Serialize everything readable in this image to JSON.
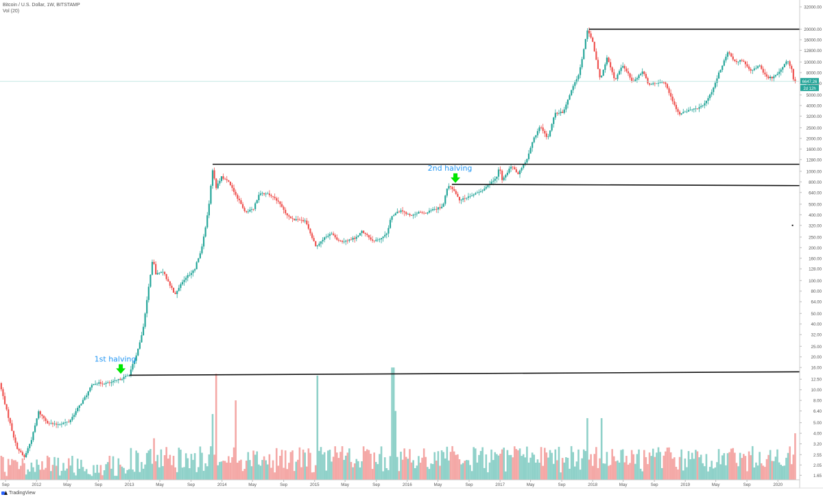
{
  "header": {
    "title": "Bitcoin / U.S. Dollar, 1W, BITSTAMP",
    "volume_label": "Vol (20)"
  },
  "footer": {
    "brand": "TradingView"
  },
  "price_badges": {
    "last_price": "6647.26",
    "countdown": "2d 12h"
  },
  "colors": {
    "up": "#26a69a",
    "down": "#ef5350",
    "volume_up": "#8fd1c9",
    "volume_down": "#f4a8a6",
    "annotation": "#2196f3",
    "arrow": "#00e600",
    "price_line": "#b2dfdb"
  },
  "chart_data": {
    "type": "candlestick",
    "y_scale": "log",
    "ylim": [
      1.5,
      32000
    ],
    "y_ticks": [
      "32000.00",
      "20000.00",
      "16000.00",
      "12800.00",
      "10000.00",
      "8000.00",
      "6400.00",
      "5000.00",
      "4000.00",
      "3200.00",
      "2500.00",
      "2000.00",
      "1600.00",
      "1280.00",
      "1000.00",
      "800.00",
      "640.00",
      "500.00",
      "400.00",
      "320.00",
      "250.00",
      "200.00",
      "160.00",
      "128.00",
      "100.00",
      "80.00",
      "64.00",
      "50.00",
      "40.00",
      "32.00",
      "25.00",
      "20.00",
      "16.00",
      "12.50",
      "10.00",
      "8.00",
      "6.40",
      "5.00",
      "4.00",
      "3.20",
      "2.55",
      "2.05",
      "1.65"
    ],
    "x_ticks": [
      "Sep",
      "2012",
      "May",
      "Sep",
      "2013",
      "May",
      "Sep",
      "2014",
      "May",
      "Sep",
      "2015",
      "May",
      "Sep",
      "2016",
      "May",
      "Sep",
      "2017",
      "May",
      "Sep",
      "2018",
      "May",
      "Sep",
      "2019",
      "May",
      "Sep",
      "2020"
    ],
    "x_tick_dates": [
      "2011-09",
      "2012-01",
      "2012-05",
      "2012-09",
      "2013-01",
      "2013-05",
      "2013-09",
      "2014-01",
      "2014-05",
      "2014-09",
      "2015-01",
      "2015-05",
      "2015-09",
      "2016-01",
      "2016-05",
      "2016-09",
      "2017-01",
      "2017-05",
      "2017-09",
      "2018-01",
      "2018-05",
      "2018-09",
      "2019-01",
      "2019-05",
      "2019-09",
      "2020-01"
    ],
    "price_path": [
      [
        "2011-08-15",
        11.5
      ],
      [
        "2011-09-15",
        6.0
      ],
      [
        "2011-10-20",
        3.0
      ],
      [
        "2011-11-20",
        2.4
      ],
      [
        "2011-12-20",
        3.6
      ],
      [
        "2012-01-15",
        6.3
      ],
      [
        "2012-02-20",
        5.0
      ],
      [
        "2012-03-20",
        4.8
      ],
      [
        "2012-05-15",
        5.1
      ],
      [
        "2012-06-15",
        6.6
      ],
      [
        "2012-07-20",
        8.8
      ],
      [
        "2012-08-17",
        11.5
      ],
      [
        "2012-09-15",
        11.5
      ],
      [
        "2012-10-20",
        11.5
      ],
      [
        "2012-11-28",
        12.4
      ],
      [
        "2013-01-05",
        13.6
      ],
      [
        "2013-02-01",
        20.0
      ],
      [
        "2013-03-01",
        34.0
      ],
      [
        "2013-03-25",
        90.0
      ],
      [
        "2013-04-10",
        160.0
      ],
      [
        "2013-04-20",
        115.0
      ],
      [
        "2013-05-20",
        120.0
      ],
      [
        "2013-07-05",
        75.0
      ],
      [
        "2013-08-15",
        105.0
      ],
      [
        "2013-09-20",
        125.0
      ],
      [
        "2013-10-20",
        200.0
      ],
      [
        "2013-11-15",
        450.0
      ],
      [
        "2013-12-01",
        1050.0
      ],
      [
        "2013-12-15",
        700.0
      ],
      [
        "2014-01-05",
        900.0
      ],
      [
        "2014-02-01",
        800.0
      ],
      [
        "2014-03-01",
        620.0
      ],
      [
        "2014-04-10",
        420.0
      ],
      [
        "2014-05-10",
        450.0
      ],
      [
        "2014-06-05",
        640.0
      ],
      [
        "2014-07-05",
        620.0
      ],
      [
        "2014-08-10",
        550.0
      ],
      [
        "2014-09-20",
        400.0
      ],
      [
        "2014-10-20",
        360.0
      ],
      [
        "2014-12-01",
        350.0
      ],
      [
        "2015-01-14",
        200.0
      ],
      [
        "2015-02-15",
        245.0
      ],
      [
        "2015-03-15",
        270.0
      ],
      [
        "2015-04-15",
        225.0
      ],
      [
        "2015-05-15",
        235.0
      ],
      [
        "2015-06-15",
        245.0
      ],
      [
        "2015-07-15",
        285.0
      ],
      [
        "2015-08-20",
        230.0
      ],
      [
        "2015-09-20",
        235.0
      ],
      [
        "2015-10-20",
        275.0
      ],
      [
        "2015-11-05",
        390.0
      ],
      [
        "2015-12-15",
        440.0
      ],
      [
        "2016-01-20",
        390.0
      ],
      [
        "2016-02-20",
        420.0
      ],
      [
        "2016-03-20",
        415.0
      ],
      [
        "2016-04-20",
        450.0
      ],
      [
        "2016-05-25",
        470.0
      ],
      [
        "2016-06-17",
        750.0
      ],
      [
        "2016-07-09",
        660.0
      ],
      [
        "2016-08-02",
        540.0
      ],
      [
        "2016-09-15",
        605.0
      ],
      [
        "2016-10-20",
        640.0
      ],
      [
        "2016-11-20",
        740.0
      ],
      [
        "2016-12-25",
        900.0
      ],
      [
        "2017-01-05",
        1100.0
      ],
      [
        "2017-01-15",
        820.0
      ],
      [
        "2017-02-20",
        1120.0
      ],
      [
        "2017-03-20",
        950.0
      ],
      [
        "2017-04-20",
        1250.0
      ],
      [
        "2017-05-20",
        2000.0
      ],
      [
        "2017-06-15",
        2600.0
      ],
      [
        "2017-07-15",
        2000.0
      ],
      [
        "2017-08-10",
        3400.0
      ],
      [
        "2017-09-15",
        3500.0
      ],
      [
        "2017-10-15",
        5600.0
      ],
      [
        "2017-11-15",
        7800.0
      ],
      [
        "2017-12-17",
        19500.0
      ],
      [
        "2018-01-05",
        16000.0
      ],
      [
        "2018-02-06",
        7000.0
      ],
      [
        "2018-03-05",
        11000.0
      ],
      [
        "2018-04-05",
        6800.0
      ],
      [
        "2018-05-05",
        9500.0
      ],
      [
        "2018-06-15",
        6500.0
      ],
      [
        "2018-07-25",
        8200.0
      ],
      [
        "2018-08-15",
        6300.0
      ],
      [
        "2018-09-15",
        6500.0
      ],
      [
        "2018-10-20",
        6400.0
      ],
      [
        "2018-11-25",
        4000.0
      ],
      [
        "2018-12-15",
        3300.0
      ],
      [
        "2019-01-15",
        3600.0
      ],
      [
        "2019-02-15",
        3700.0
      ],
      [
        "2019-03-20",
        4000.0
      ],
      [
        "2019-04-20",
        5300.0
      ],
      [
        "2019-05-20",
        8000.0
      ],
      [
        "2019-06-26",
        12500.0
      ],
      [
        "2019-07-20",
        10000.0
      ],
      [
        "2019-08-20",
        10500.0
      ],
      [
        "2019-09-25",
        8200.0
      ],
      [
        "2019-10-26",
        9300.0
      ],
      [
        "2019-11-25",
        7200.0
      ],
      [
        "2019-12-20",
        7200.0
      ],
      [
        "2020-01-20",
        8700.0
      ],
      [
        "2020-02-15",
        10300.0
      ],
      [
        "2020-03-01",
        8600.0
      ],
      [
        "2020-03-10",
        6647.26
      ]
    ],
    "volume_spikes": [
      [
        "2013-04-10",
        3.6
      ],
      [
        "2013-11-25",
        6.0
      ],
      [
        "2013-12-10",
        14.0
      ],
      [
        "2014-02-25",
        8.0
      ],
      [
        "2015-01-14",
        13.5
      ],
      [
        "2015-11-05",
        16.0
      ],
      [
        "2015-11-15",
        6.4
      ],
      [
        "2017-12-10",
        5.5
      ],
      [
        "2018-02-06",
        5.5
      ],
      [
        "2020-03-10",
        4.0
      ]
    ],
    "horizontal_lines": [
      {
        "start": "2017-12-17",
        "value": 20000.0,
        "end_value": 20000.0
      },
      {
        "start": "2013-11-25",
        "value": 1160.0,
        "end_value": 1160.0
      },
      {
        "start": "2016-06-25",
        "value": 760.0,
        "end_value": 740.0
      },
      {
        "start": "2013-01-01",
        "value": 13.6,
        "end_value": 14.6
      },
      {
        "start": "2020-02-25",
        "value": 320.0,
        "end_value": 320.0,
        "dot": true
      }
    ],
    "annotations": [
      {
        "text": "1st halving",
        "date": "2012-11-28",
        "value": 13.6
      },
      {
        "text": "2nd halving",
        "date": "2016-07-09",
        "value": 760.0
      }
    ]
  }
}
